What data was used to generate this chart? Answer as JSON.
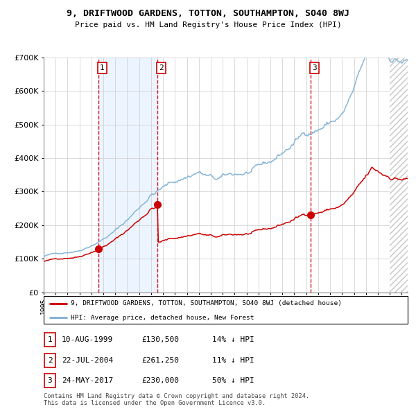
{
  "title": "9, DRIFTWOOD GARDENS, TOTTON, SOUTHAMPTON, SO40 8WJ",
  "subtitle": "Price paid vs. HM Land Registry's House Price Index (HPI)",
  "sale_dates_num": [
    1999.607,
    2004.554,
    2017.389
  ],
  "sale_prices": [
    130500,
    261250,
    230000
  ],
  "sale_labels": [
    "1",
    "2",
    "3"
  ],
  "sale_info": [
    {
      "label": "1",
      "date": "10-AUG-1999",
      "price": "£130,500",
      "hpi": "14% ↓ HPI"
    },
    {
      "label": "2",
      "date": "22-JUL-2004",
      "price": "£261,250",
      "hpi": "11% ↓ HPI"
    },
    {
      "label": "3",
      "date": "24-MAY-2017",
      "price": "£230,000",
      "hpi": "50% ↓ HPI"
    }
  ],
  "legend_line1": "9, DRIFTWOOD GARDENS, TOTTON, SOUTHAMPTON, SO40 8WJ (detached house)",
  "legend_line2": "HPI: Average price, detached house, New Forest",
  "footer": "Contains HM Land Registry data © Crown copyright and database right 2024.\nThis data is licensed under the Open Government Licence v3.0.",
  "red_line_color": "#cc0000",
  "blue_line_color": "#7aadd4",
  "background_color": "#ffffff",
  "plot_bg_color": "#ffffff",
  "shade_color": "#ddeeff",
  "grid_color": "#cccccc",
  "xmin": 1995.0,
  "xmax": 2025.5,
  "ymin": 0,
  "ymax": 700000,
  "hatch_start": 2024.0
}
